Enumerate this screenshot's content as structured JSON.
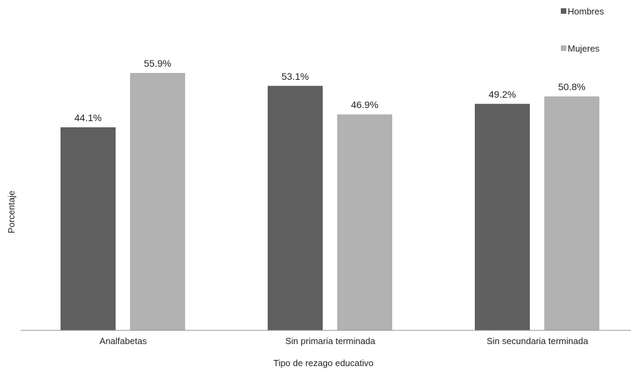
{
  "chart_data": {
    "type": "bar",
    "title": "",
    "xlabel": "Tipo de rezago educativo",
    "ylabel": "Porcentaje",
    "categories": [
      "Analfabetas",
      "Sin primaria terminada",
      "Sin secundaria terminada"
    ],
    "series": [
      {
        "name": "Hombres",
        "values": [
          44.1,
          53.1,
          49.2
        ],
        "labels": [
          "44.1%",
          "53.1%",
          "49.2%"
        ],
        "color": "#5f5f5f"
      },
      {
        "name": "Mujeres",
        "values": [
          55.9,
          46.9,
          50.8
        ],
        "labels": [
          "55.9%",
          "46.9%",
          "50.8%"
        ],
        "color": "#b2b2b2"
      }
    ],
    "ylim": [
      0,
      65
    ],
    "grid": false,
    "legend": "top-right",
    "baseline_color": "#8c8c8c"
  }
}
